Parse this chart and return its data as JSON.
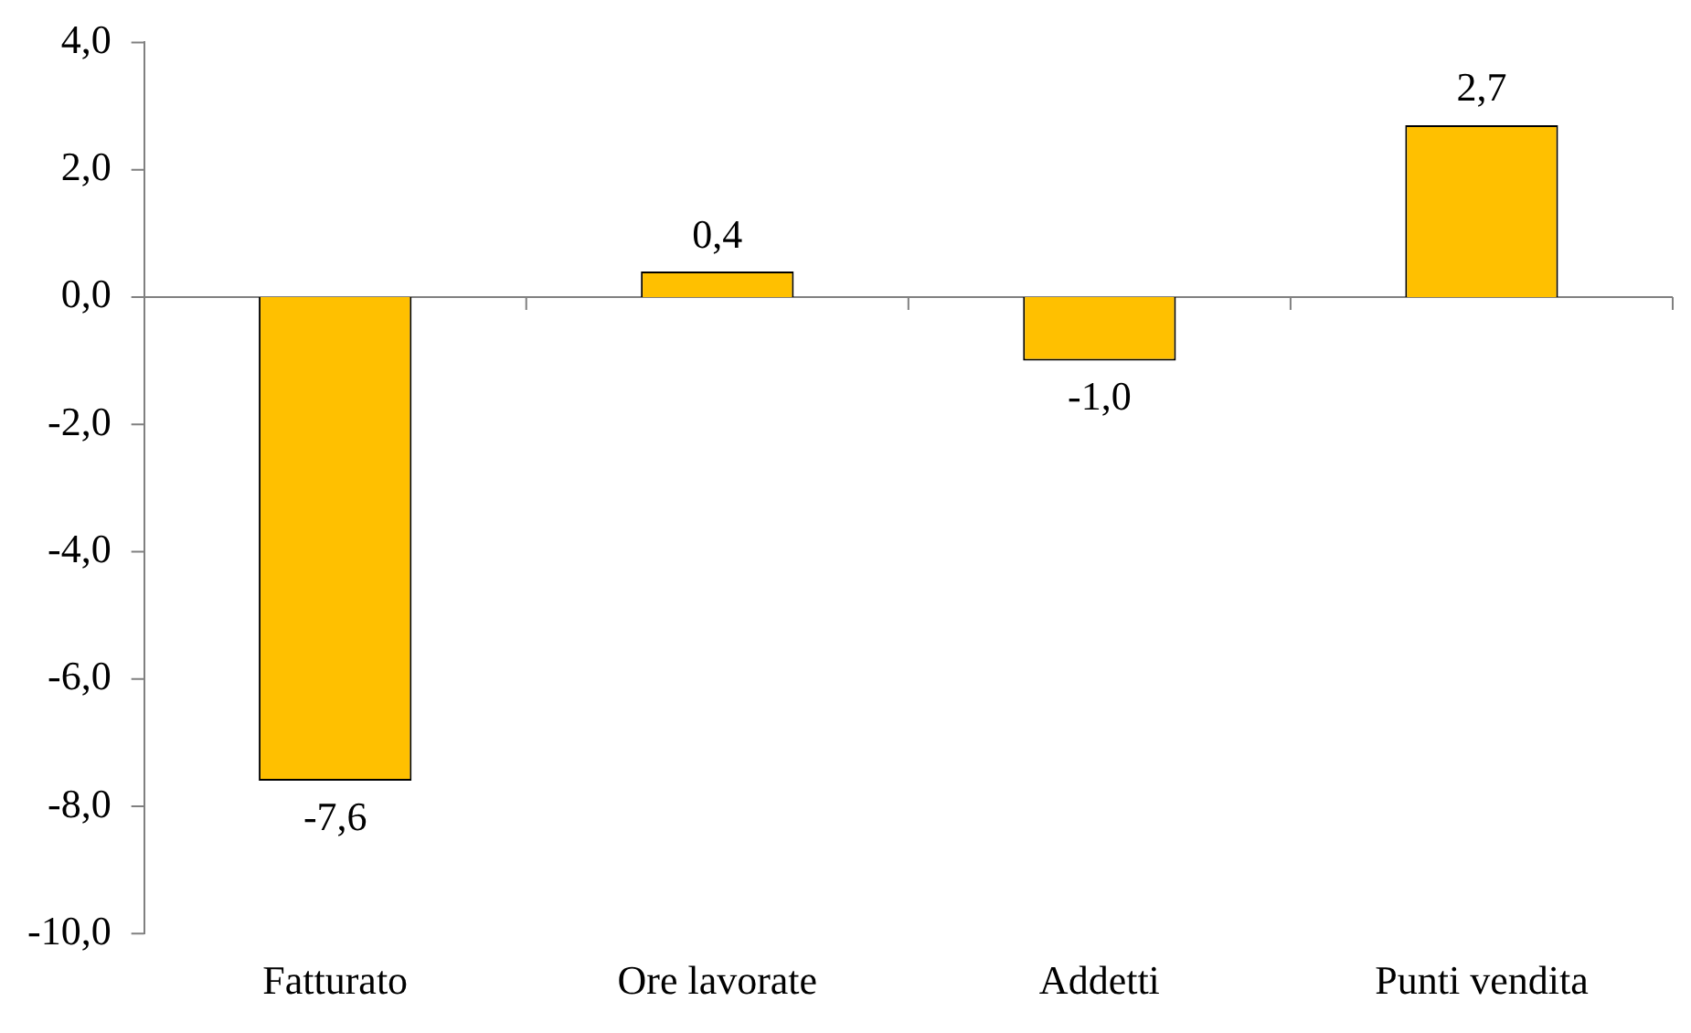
{
  "chart_data": {
    "type": "bar",
    "categories": [
      "Fatturato",
      "Ore lavorate",
      "Addetti",
      "Punti vendita"
    ],
    "values": [
      -7.6,
      0.4,
      -1.0,
      2.7
    ],
    "color": "#ffc000",
    "value_labels": [
      "-7,6",
      "0,4",
      "-1,0",
      "2,7"
    ],
    "ylim": [
      -10,
      4
    ],
    "yticks": [
      {
        "value": 4,
        "label": "4,0"
      },
      {
        "value": 2,
        "label": "2,0"
      },
      {
        "value": 0,
        "label": "0,0"
      },
      {
        "value": -2,
        "label": "-2,0"
      },
      {
        "value": -4,
        "label": "-4,0"
      },
      {
        "value": -6,
        "label": "-6,0"
      },
      {
        "value": -8,
        "label": "-8,0"
      },
      {
        "value": -10,
        "label": "-10,0"
      }
    ],
    "ref_lines": [
      {
        "axis": "y",
        "value": 0,
        "color": "#808080"
      }
    ],
    "grid": false,
    "legend": false
  }
}
